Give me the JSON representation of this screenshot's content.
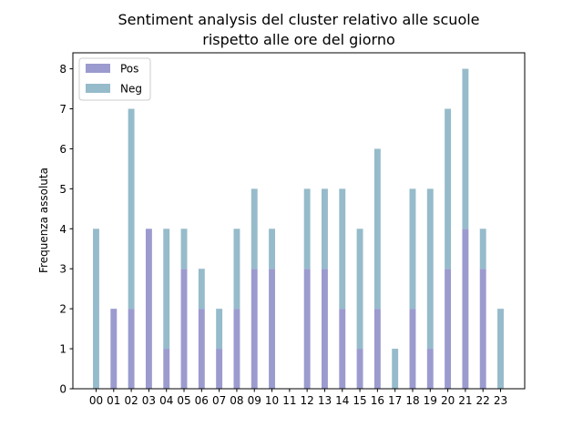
{
  "chart_data": {
    "type": "bar",
    "stacked": true,
    "title": "Sentiment analysis del cluster relativo alle scuole\nrispetto alle ore del giorno",
    "xlabel": "",
    "ylabel": "Frequenza assoluta",
    "ylim": [
      0,
      8.4
    ],
    "yticks": [
      0,
      1,
      2,
      3,
      4,
      5,
      6,
      7,
      8
    ],
    "categories": [
      "00",
      "01",
      "02",
      "03",
      "04",
      "05",
      "06",
      "07",
      "08",
      "09",
      "10",
      "11",
      "12",
      "13",
      "14",
      "15",
      "16",
      "17",
      "18",
      "19",
      "20",
      "21",
      "22",
      "23"
    ],
    "series": [
      {
        "name": "Pos",
        "color": "#9b9bcf",
        "values": [
          0,
          2,
          2,
          4,
          1,
          3,
          2,
          1,
          2,
          3,
          3,
          0,
          3,
          3,
          2,
          1,
          2,
          0,
          2,
          1,
          3,
          4,
          3,
          0
        ]
      },
      {
        "name": "Neg",
        "color": "#96bbcb",
        "values": [
          4,
          0,
          5,
          0,
          3,
          1,
          1,
          1,
          2,
          2,
          1,
          0,
          2,
          2,
          3,
          3,
          4,
          1,
          3,
          4,
          4,
          4,
          1,
          2
        ]
      }
    ],
    "grid": false,
    "legend": "top-left"
  }
}
